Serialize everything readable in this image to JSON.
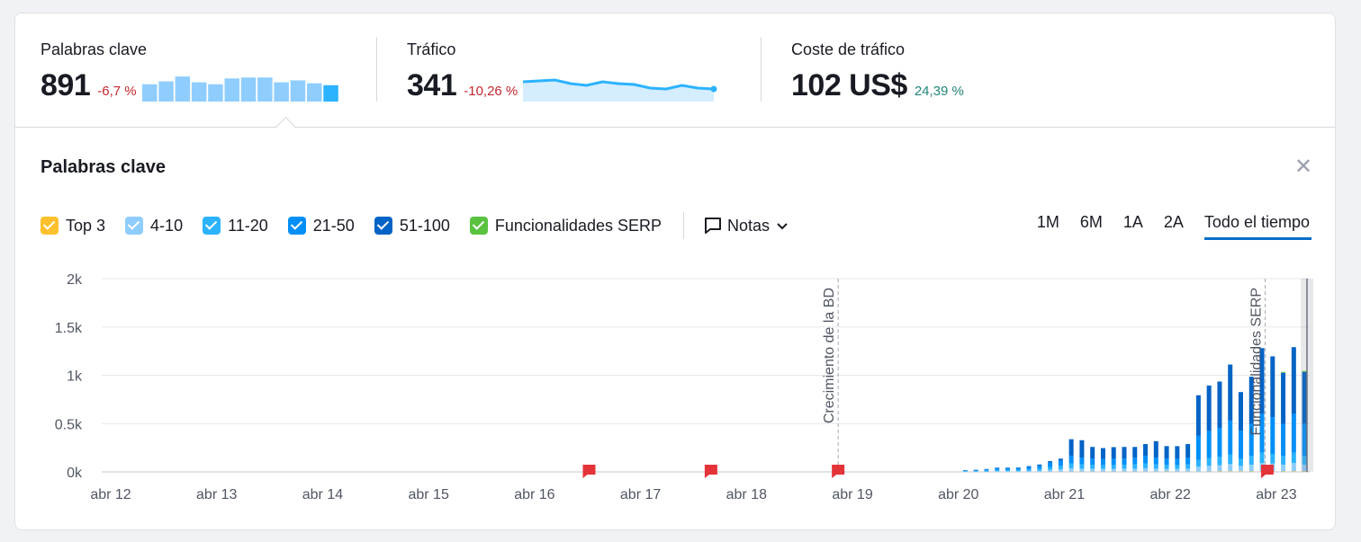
{
  "summary": {
    "keywords": {
      "label": "Palabras clave",
      "value": "891",
      "delta": "-6,7 %",
      "spark": [
        18,
        21,
        26,
        20,
        18,
        24,
        25,
        25,
        20,
        22,
        19,
        17
      ]
    },
    "traffic": {
      "label": "Tráfico",
      "value": "341",
      "delta": "-10,26 %",
      "spark": [
        20,
        21,
        22,
        18,
        16,
        20,
        18,
        17,
        13,
        12,
        16,
        13,
        12
      ]
    },
    "cost": {
      "label": "Coste de tráfico",
      "value": "102 US$",
      "delta": "24,39 %"
    }
  },
  "panel": {
    "title": "Palabras clave",
    "close_icon": "close-icon",
    "legend": [
      {
        "label": "Top 3",
        "color": "#ffc02e"
      },
      {
        "label": "4-10",
        "color": "#8fcdff"
      },
      {
        "label": "11-20",
        "color": "#2bb3ff"
      },
      {
        "label": "21-50",
        "color": "#008ff8"
      },
      {
        "label": "51-100",
        "color": "#0063c6"
      },
      {
        "label": "Funcionalidades SERP",
        "color": "#59c23e"
      }
    ],
    "notes_label": "Notas",
    "ranges": [
      "1M",
      "6M",
      "1A",
      "2A",
      "Todo el tiempo"
    ],
    "active_range": "Todo el tiempo"
  },
  "chart_data": {
    "type": "bar",
    "stacked": true,
    "ylim": [
      0,
      2000
    ],
    "yticks": [
      "0k",
      "0.5k",
      "1k",
      "1.5k",
      "2k"
    ],
    "xticks": [
      "abr 12",
      "abr 13",
      "abr 14",
      "abr 15",
      "abr 16",
      "abr 17",
      "abr 18",
      "abr 19",
      "abr 20",
      "abr 21",
      "abr 22",
      "abr 23"
    ],
    "x_start": 2012.0,
    "x_end": 2023.4,
    "annotations": [
      {
        "x": 2018.95,
        "label": "Crecimiento de la BD"
      },
      {
        "x": 2022.98,
        "label": "Funcionalidades SERP"
      }
    ],
    "note_flags": [
      2016.6,
      2017.75,
      2018.95,
      2023.0
    ],
    "x": [
      2020.15,
      2020.25,
      2020.35,
      2020.45,
      2020.55,
      2020.65,
      2020.75,
      2020.85,
      2020.95,
      2021.05,
      2021.15,
      2021.25,
      2021.35,
      2021.45,
      2021.55,
      2021.65,
      2021.75,
      2021.85,
      2021.95,
      2022.05,
      2022.15,
      2022.25,
      2022.35,
      2022.45,
      2022.55,
      2022.65,
      2022.75,
      2022.85,
      2022.95,
      2023.05,
      2023.15,
      2023.25,
      2023.35
    ],
    "series": [
      {
        "name": "Top 3",
        "values": [
          0,
          0,
          0,
          0,
          0,
          0,
          0,
          0,
          1,
          2,
          3,
          3,
          3,
          3,
          3,
          3,
          3,
          3,
          3,
          4,
          3,
          3,
          3,
          4,
          5,
          6,
          6,
          5,
          6,
          6,
          5,
          6,
          5
        ]
      },
      {
        "name": "4-10",
        "values": [
          3,
          4,
          5,
          8,
          8,
          8,
          10,
          14,
          20,
          25,
          35,
          30,
          30,
          28,
          28,
          30,
          30,
          35,
          30,
          28,
          28,
          30,
          50,
          60,
          65,
          75,
          55,
          70,
          85,
          80,
          70,
          85,
          70
        ]
      },
      {
        "name": "11-20",
        "values": [
          5,
          6,
          8,
          12,
          12,
          12,
          15,
          20,
          30,
          35,
          50,
          45,
          40,
          40,
          40,
          40,
          45,
          50,
          45,
          40,
          40,
          45,
          70,
          80,
          85,
          100,
          75,
          90,
          110,
          100,
          90,
          110,
          90
        ]
      },
      {
        "name": "21-50",
        "values": [
          6,
          8,
          12,
          18,
          18,
          20,
          25,
          30,
          45,
          55,
          80,
          70,
          65,
          65,
          65,
          65,
          70,
          80,
          70,
          65,
          65,
          70,
          250,
          280,
          300,
          350,
          290,
          330,
          400,
          380,
          330,
          400,
          330
        ]
      },
      {
        "name": "51-100",
        "values": [
          3,
          4,
          5,
          6,
          6,
          6,
          10,
          12,
          15,
          20,
          170,
          180,
          120,
          110,
          120,
          120,
          110,
          120,
          170,
          130,
          130,
          140,
          420,
          470,
          480,
          580,
          400,
          490,
          680,
          630,
          530,
          690,
          540
        ]
      },
      {
        "name": "Funcionalidades SERP",
        "values": [
          0,
          0,
          0,
          0,
          0,
          0,
          0,
          0,
          0,
          0,
          0,
          0,
          0,
          0,
          0,
          0,
          0,
          0,
          0,
          0,
          0,
          0,
          0,
          0,
          0,
          0,
          0,
          0,
          0,
          0,
          10,
          0,
          10
        ]
      }
    ]
  }
}
